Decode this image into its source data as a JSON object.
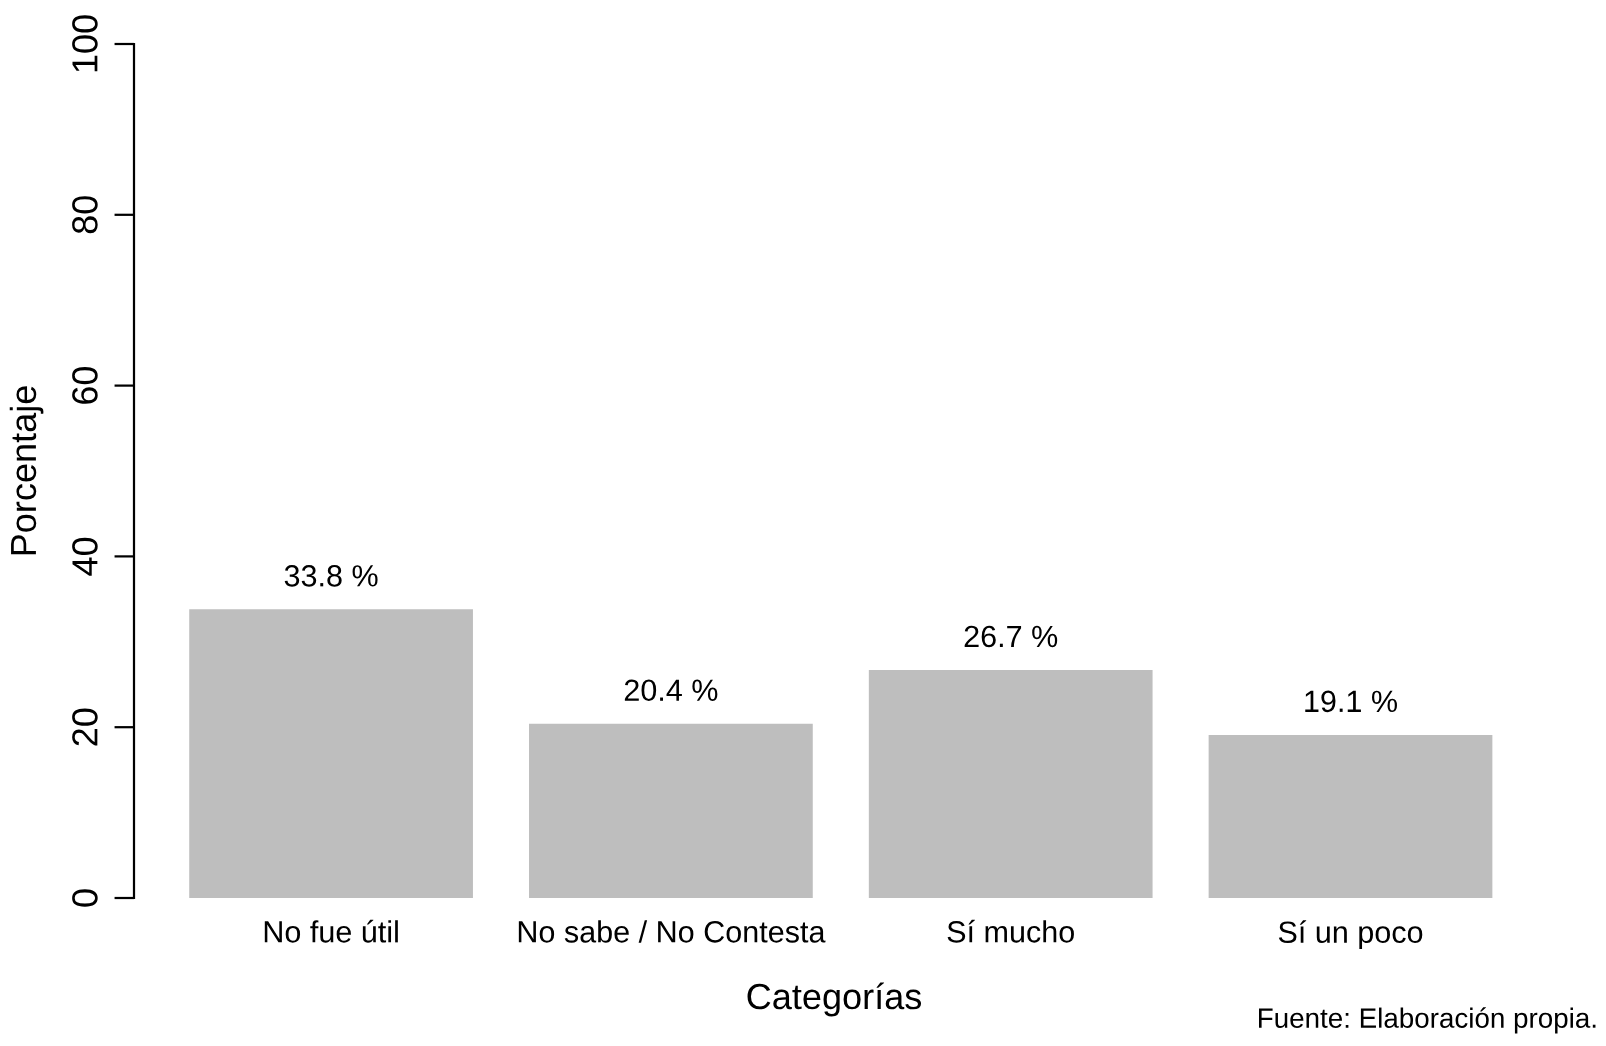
{
  "chart_data": {
    "type": "bar",
    "xlabel": "Categorías",
    "ylabel": "Porcentaje",
    "categories": [
      "No fue útil",
      "No sabe / No Contesta",
      "Sí mucho",
      "Sí un poco"
    ],
    "values": [
      33.8,
      20.4,
      26.7,
      19.1
    ],
    "value_labels": [
      "33.8 %",
      "20.4 %",
      "26.7 %",
      "19.1 %"
    ],
    "color": "#bebebe",
    "ylim": [
      0,
      100
    ],
    "yticks": [
      0,
      20,
      40,
      60,
      80,
      100
    ],
    "grid": false,
    "annotations": [
      "Fuente: Elaboración propia."
    ]
  }
}
